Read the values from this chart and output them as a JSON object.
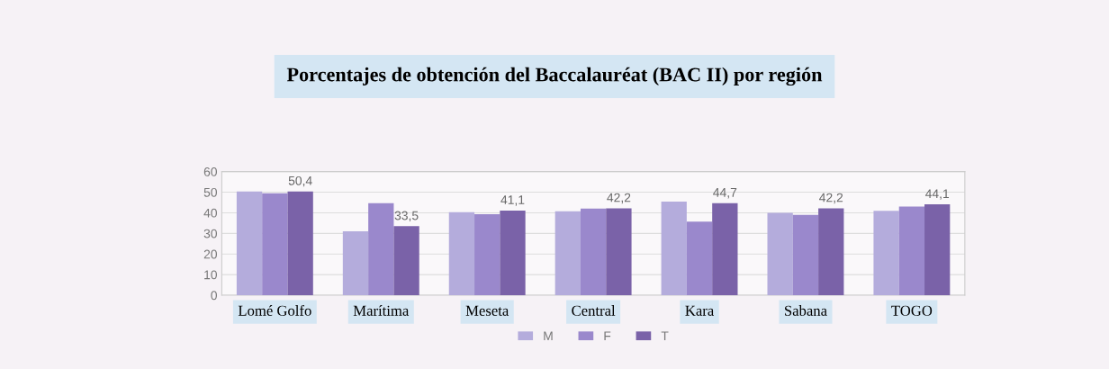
{
  "chart_data": {
    "type": "bar",
    "title": "Porcentajes de obtención del Baccalauréat (BAC II) por región",
    "categories": [
      "Lomé Golfo",
      "Marítima",
      "Meseta",
      "Central",
      "Kara",
      "Sabana",
      "TOGO"
    ],
    "series": [
      {
        "name": "M",
        "color": "#b4acdc",
        "values": [
          50.4,
          31,
          40.3,
          40.7,
          45.4,
          40,
          41
        ]
      },
      {
        "name": "F",
        "color": "#9a88cc",
        "values": [
          49.5,
          44.7,
          39.3,
          42.1,
          35.7,
          39,
          43
        ]
      },
      {
        "name": "T",
        "color": "#7a62a8",
        "values": [
          50.4,
          33.5,
          41.1,
          42.2,
          44.7,
          42.2,
          44.1
        ],
        "value_labels": [
          "50,4",
          "33,5",
          "41,1",
          "42,2",
          "44,7",
          "42,2",
          "44,1"
        ]
      }
    ],
    "ylim": [
      0,
      60
    ],
    "yticks": [
      0,
      10,
      20,
      30,
      40,
      50,
      60
    ],
    "grid": "y",
    "legend": "bottom"
  }
}
